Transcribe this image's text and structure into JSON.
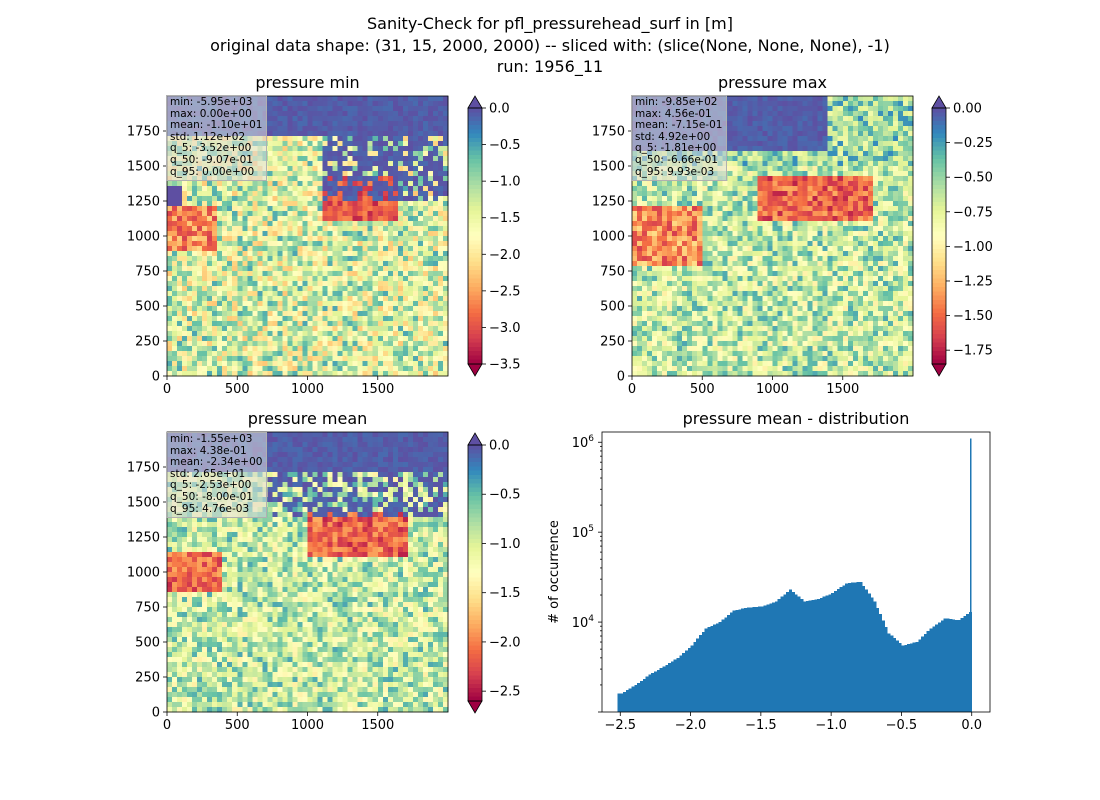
{
  "figure": {
    "title_lines": [
      "Sanity-Check for pfl_pressurehead_surf in [m]",
      "original data shape: (31, 15, 2000, 2000) -- sliced with: (slice(None, None, None), -1)",
      "run: 1956_11"
    ]
  },
  "chart_data": [
    {
      "type": "heatmap",
      "title": "pressure min",
      "colormap": "Spectral",
      "extend": "both",
      "x_ticks": [
        "0",
        "500",
        "1000",
        "1500"
      ],
      "y_ticks": [
        "0",
        "250",
        "500",
        "750",
        "1000",
        "1250",
        "1500",
        "1750"
      ],
      "xlim": [
        0,
        2000
      ],
      "ylim": [
        0,
        2000
      ],
      "colorbar": {
        "min": -3.5,
        "max": 0.0,
        "ticks": [
          "0.0",
          "−0.5",
          "−1.0",
          "−1.5",
          "−2.0",
          "−2.5",
          "−3.0",
          "−3.5"
        ]
      },
      "stats": [
        "min: -5.95e+03",
        "max: 0.00e+00",
        "mean: -1.10e+01",
        "std: 1.12e+02",
        "q_5: -3.52e+00",
        "q_50: -9.07e-01",
        "q_95: 0.00e+00"
      ]
    },
    {
      "type": "heatmap",
      "title": "pressure max",
      "colormap": "Spectral",
      "extend": "both",
      "x_ticks": [
        "0",
        "500",
        "1000",
        "1500"
      ],
      "y_ticks": [
        "0",
        "250",
        "500",
        "750",
        "1000",
        "1250",
        "1500",
        "1750"
      ],
      "xlim": [
        0,
        2000
      ],
      "ylim": [
        0,
        2000
      ],
      "colorbar": {
        "min": -1.85,
        "max": 0.0,
        "ticks": [
          "0.00",
          "−0.25",
          "−0.50",
          "−0.75",
          "−1.00",
          "−1.25",
          "−1.50",
          "−1.75"
        ]
      },
      "stats": [
        "min: -9.85e+02",
        "max: 4.56e-01",
        "mean: -7.15e-01",
        "std: 4.92e+00",
        "q_5: -1.81e+00",
        "q_50: -6.66e-01",
        "q_95: 9.93e-03"
      ]
    },
    {
      "type": "heatmap",
      "title": "pressure mean",
      "colormap": "Spectral",
      "extend": "both",
      "x_ticks": [
        "0",
        "500",
        "1000",
        "1500"
      ],
      "y_ticks": [
        "0",
        "250",
        "500",
        "750",
        "1000",
        "1250",
        "1500",
        "1750"
      ],
      "xlim": [
        0,
        2000
      ],
      "ylim": [
        0,
        2000
      ],
      "colorbar": {
        "min": -2.6,
        "max": 0.0,
        "ticks": [
          "0.0",
          "−0.5",
          "−1.0",
          "−1.5",
          "−2.0",
          "−2.5"
        ]
      },
      "stats": [
        "min: -1.55e+03",
        "max: 4.38e-01",
        "mean: -2.34e+00",
        "std: 2.65e+01",
        "q_5: -2.53e+00",
        "q_50: -8.00e-01",
        "q_95: 4.76e-03"
      ]
    },
    {
      "type": "bar",
      "title": "pressure mean - distribution",
      "ylabel": "# of occurrence",
      "xlabel": "",
      "yscale": "log",
      "bar_color": "#1f77b4",
      "xlim": [
        -2.63,
        0.13
      ],
      "ylim": [
        1000,
        1300000
      ],
      "x_ticks": [
        "−2.5",
        "−2.0",
        "−1.5",
        "−1.0",
        "−0.5",
        "0.0"
      ],
      "y_ticks": [
        "10^4",
        "10^5",
        "10^6"
      ],
      "x": [
        -2.5,
        -2.4,
        -2.3,
        -2.2,
        -2.1,
        -2.0,
        -1.9,
        -1.8,
        -1.7,
        -1.6,
        -1.5,
        -1.4,
        -1.3,
        -1.2,
        -1.1,
        -1.0,
        -0.9,
        -0.8,
        -0.7,
        -0.6,
        -0.5,
        -0.4,
        -0.3,
        -0.2,
        -0.1,
        -0.02,
        0.0
      ],
      "values": [
        1600,
        2000,
        2600,
        3200,
        4000,
        5500,
        8500,
        10000,
        13500,
        14500,
        15000,
        17000,
        23000,
        17000,
        18000,
        21000,
        27000,
        28000,
        17000,
        7500,
        5500,
        6000,
        8500,
        11000,
        10500,
        13000,
        1100000
      ]
    }
  ]
}
